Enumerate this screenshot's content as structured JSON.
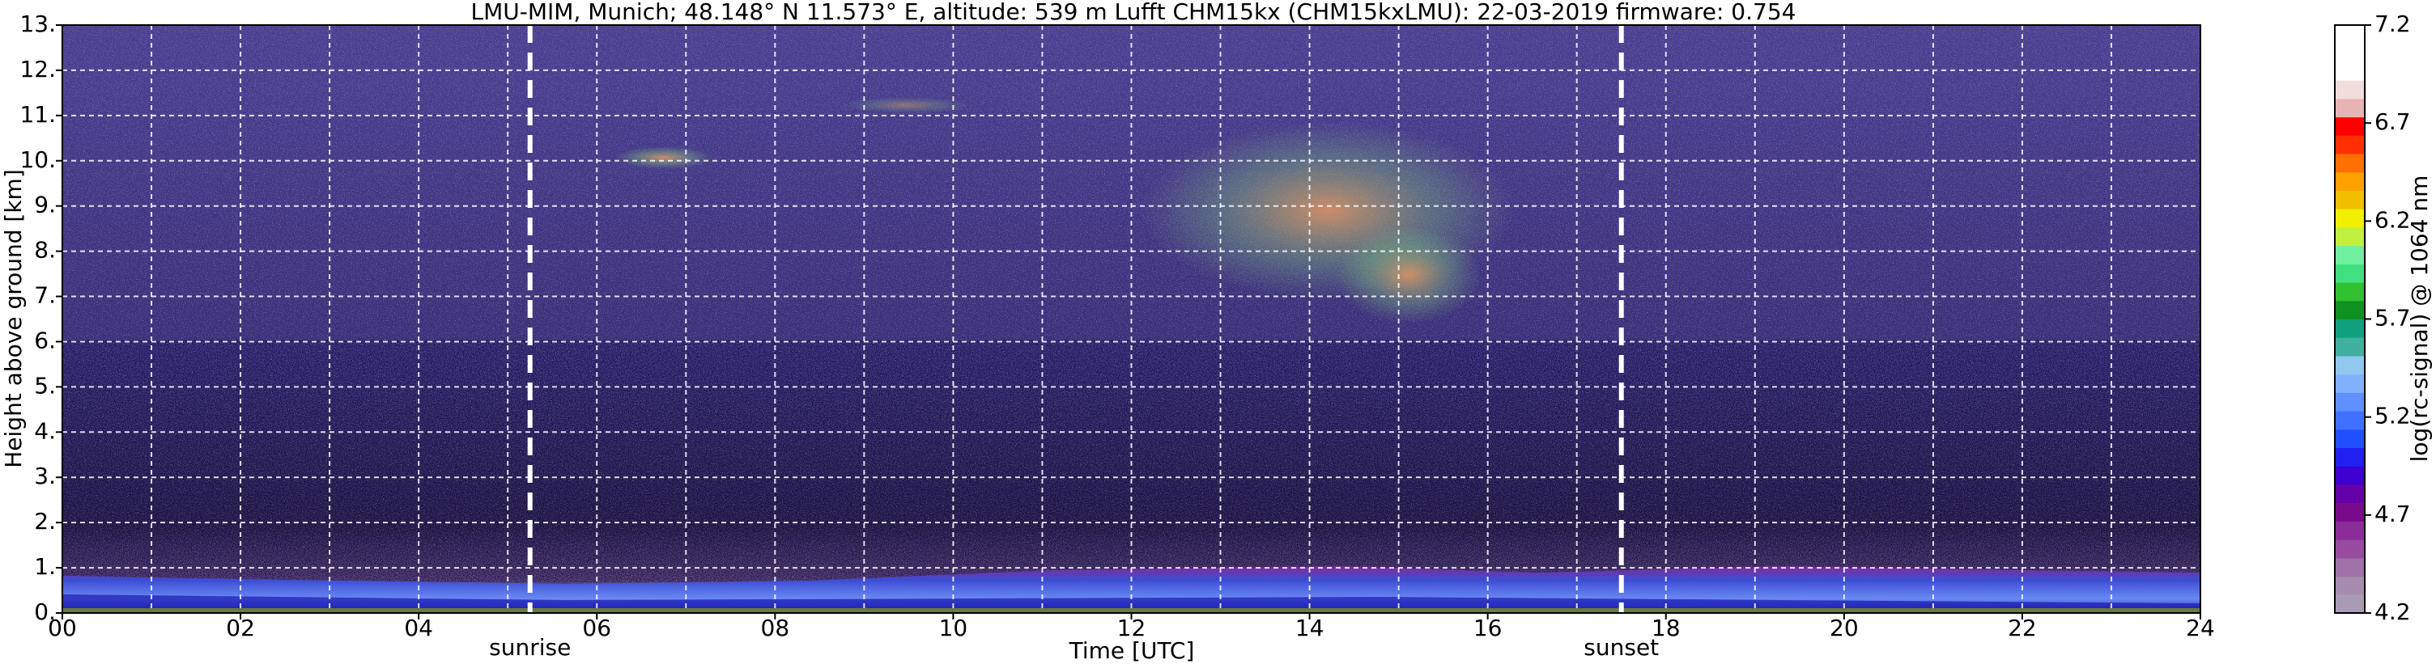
{
  "chart_data": {
    "type": "heatmap",
    "title": "LMU-MIM, Munich; 48.148° N 11.573° E, altitude: 539 m    Lufft CHM15kx (CHM15kxLMU): 22-03-2019    firmware: 0.754",
    "xlabel": "Time [UTC]",
    "ylabel": "Height above ground [km]",
    "xlim": [
      0,
      24
    ],
    "ylim": [
      0,
      13
    ],
    "xticks": [
      {
        "value": 0,
        "label": "00"
      },
      {
        "value": 2,
        "label": "02"
      },
      {
        "value": 4,
        "label": "04"
      },
      {
        "value": 6,
        "label": "06"
      },
      {
        "value": 8,
        "label": "08"
      },
      {
        "value": 10,
        "label": "10"
      },
      {
        "value": 12,
        "label": "12"
      },
      {
        "value": 14,
        "label": "14"
      },
      {
        "value": 16,
        "label": "16"
      },
      {
        "value": 18,
        "label": "18"
      },
      {
        "value": 20,
        "label": "20"
      },
      {
        "value": 22,
        "label": "22"
      },
      {
        "value": 24,
        "label": "24"
      }
    ],
    "xminorticks": [
      1,
      3,
      5,
      7,
      9,
      11,
      13,
      15,
      17,
      19,
      21,
      23
    ],
    "yticks": [
      {
        "value": 0,
        "label": "0."
      },
      {
        "value": 1,
        "label": "1."
      },
      {
        "value": 2,
        "label": "2."
      },
      {
        "value": 3,
        "label": "3."
      },
      {
        "value": 4,
        "label": "4."
      },
      {
        "value": 5,
        "label": "5."
      },
      {
        "value": 6,
        "label": "6."
      },
      {
        "value": 7,
        "label": "7."
      },
      {
        "value": 8,
        "label": "8."
      },
      {
        "value": 9,
        "label": "9."
      },
      {
        "value": 10,
        "label": "10."
      },
      {
        "value": 11,
        "label": "11."
      },
      {
        "value": 12,
        "label": "12."
      },
      {
        "value": 13,
        "label": "13."
      }
    ],
    "grid": true,
    "annotations": [
      {
        "text": "sunrise",
        "x": 5.25
      },
      {
        "text": "sunset",
        "x": 17.5
      }
    ],
    "colorbar": {
      "label": "log(rc-signal) @ 1064 nm",
      "lim": [
        4.2,
        7.2
      ],
      "ticks": [
        4.2,
        4.7,
        5.2,
        5.7,
        6.2,
        6.7,
        7.2
      ],
      "colors": [
        "#a89cb4",
        "#a88cb0",
        "#a070a8",
        "#984ca0",
        "#8c2c98",
        "#7a0a8c",
        "#6400a8",
        "#3c00d0",
        "#2020f0",
        "#2050ff",
        "#4070ff",
        "#6090ff",
        "#80b0ff",
        "#90c8f0",
        "#40b0a0",
        "#10a080",
        "#109020",
        "#30c030",
        "#40e080",
        "#70f0a0",
        "#c0f040",
        "#f0f000",
        "#f0c000",
        "#ffa000",
        "#ff7000",
        "#ff3000",
        "#ff0000",
        "#e8b4b4",
        "#f2dcdc",
        "#ffffff",
        "#ffffff",
        "#ffffff"
      ]
    }
  }
}
